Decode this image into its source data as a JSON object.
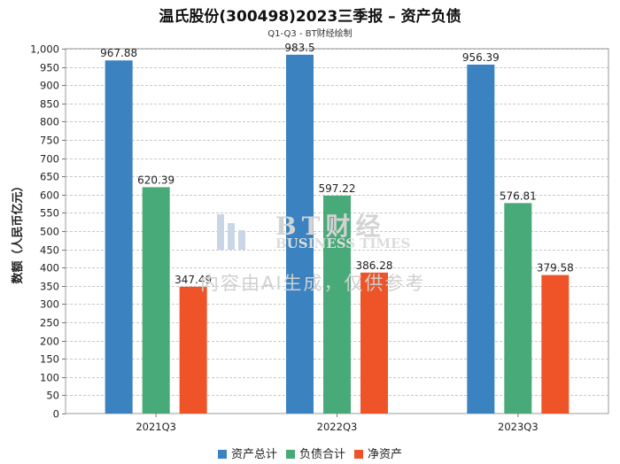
{
  "title": "温氏股份(300498)2023三季报 – 资产负债",
  "subtitle": "Q1-Q3 - BT财经绘制",
  "watermark": {
    "brand": "BT财经",
    "brand_sub": "BUSINESS TIMES",
    "note": "内容由AI生成，仅供参考"
  },
  "chart_data": {
    "type": "bar",
    "title": "温氏股份(300498)2023三季报 – 资产负债",
    "subtitle": "Q1-Q3 - BT财经绘制",
    "xlabel": "",
    "ylabel": "数额（人民币亿元）",
    "categories": [
      "2021Q3",
      "2022Q3",
      "2023Q3"
    ],
    "series": [
      {
        "name": "资产总计",
        "color": "#3a82c0",
        "values": [
          967.88,
          983.5,
          956.39
        ],
        "labels": [
          "967.88",
          "983.5",
          "956.39"
        ]
      },
      {
        "name": "负债合计",
        "color": "#48aa78",
        "values": [
          620.39,
          597.22,
          576.81
        ],
        "labels": [
          "620.39",
          "597.22",
          "576.81"
        ]
      },
      {
        "name": "净资产",
        "color": "#ef5428",
        "values": [
          347.49,
          386.28,
          379.58
        ],
        "labels": [
          "347.49",
          "386.28",
          "379.58"
        ]
      }
    ],
    "ylim": [
      0,
      1000
    ],
    "yticks": [
      0,
      50,
      100,
      150,
      200,
      250,
      300,
      350,
      400,
      450,
      500,
      550,
      600,
      650,
      700,
      750,
      800,
      850,
      900,
      950,
      1000
    ],
    "ytick_labels": [
      "0",
      "50",
      "100",
      "150",
      "200",
      "250",
      "300",
      "350",
      "400",
      "450",
      "500",
      "550",
      "600",
      "650",
      "700",
      "750",
      "800",
      "850",
      "900",
      "950",
      "1,000"
    ],
    "grid": true,
    "legend_position": "bottom-center"
  }
}
